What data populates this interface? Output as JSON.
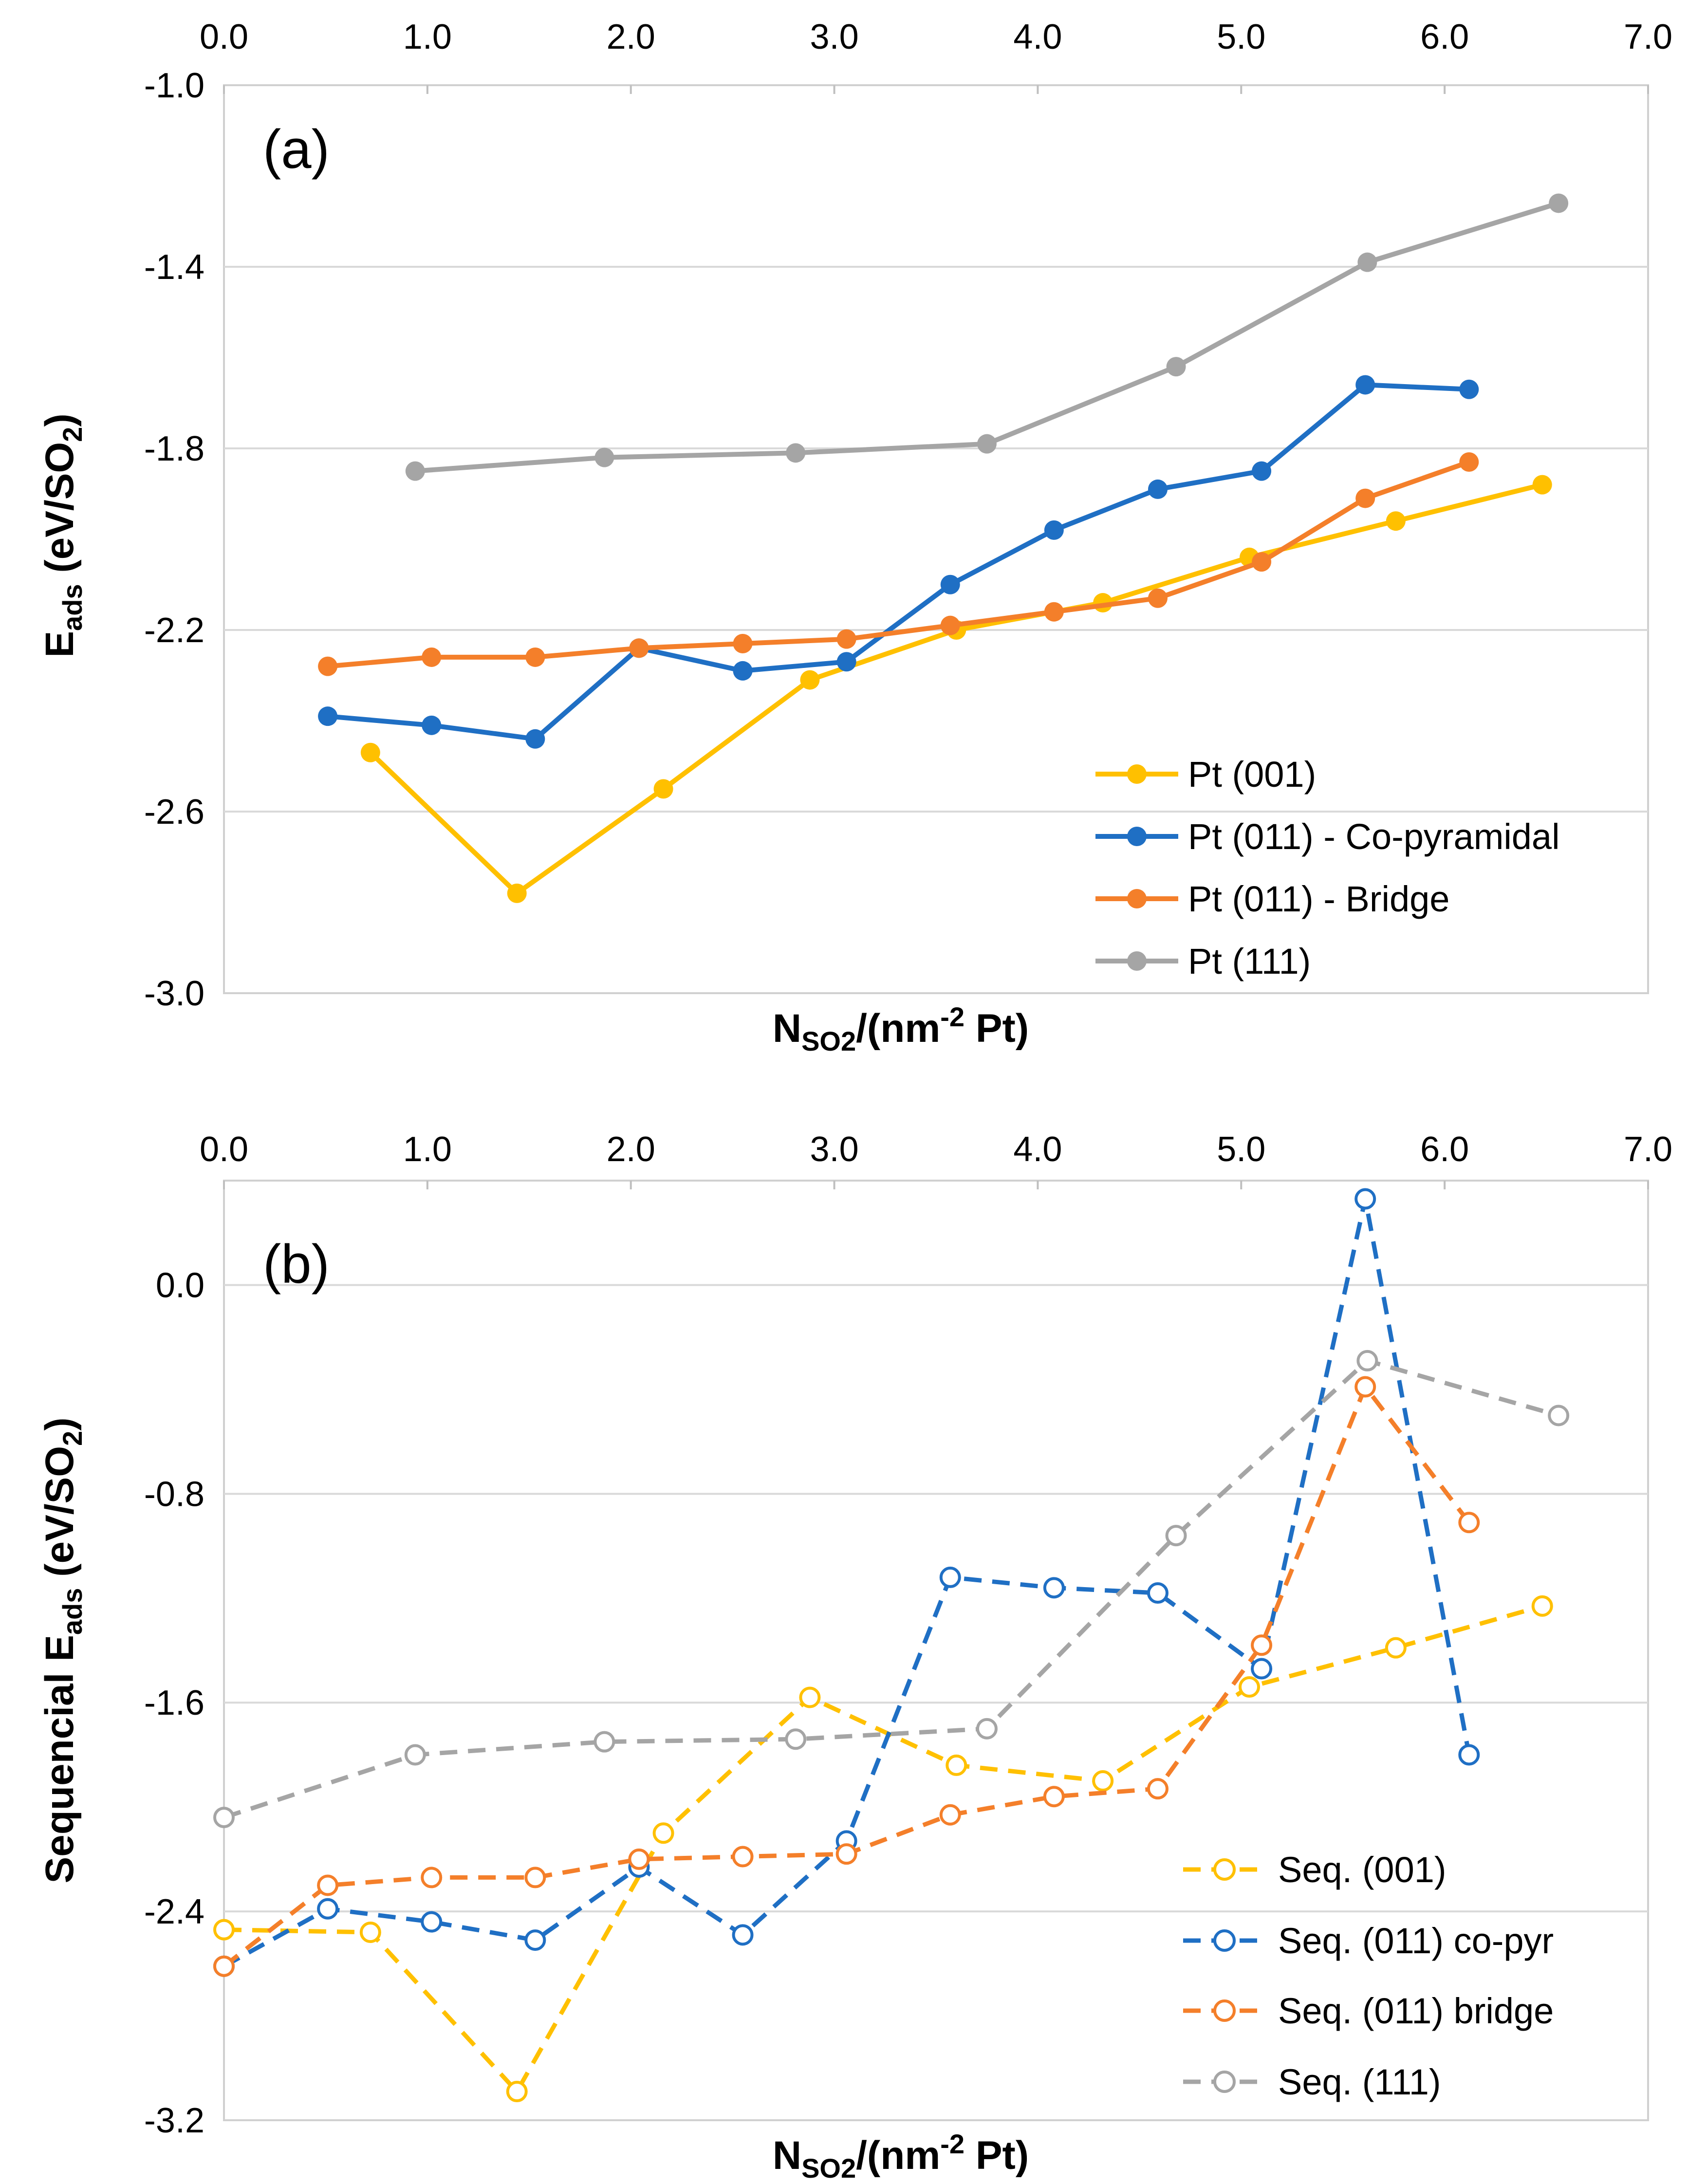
{
  "chart_data": [
    {
      "type": "line",
      "panel_label": "(a)",
      "title": "",
      "xlabel": {
        "base": "N",
        "sub": "SO2",
        "rest": "/(nm",
        "sup": "-2",
        "tail": " Pt)"
      },
      "ylabel": {
        "base": "E",
        "sub": "ads",
        "rest": " (eV/SO",
        "sub2": "2",
        "tail": ")"
      },
      "xlim": [
        0,
        7
      ],
      "ylim": [
        -3.0,
        -1.0
      ],
      "xticks": [
        "0.0",
        "1.0",
        "2.0",
        "3.0",
        "4.0",
        "5.0",
        "6.0",
        "7.0"
      ],
      "yticks": [
        "-1.0",
        "-1.4",
        "-1.8",
        "-2.2",
        "-2.6",
        "-3.0"
      ],
      "ytick_values": [
        -1.0,
        -1.4,
        -1.8,
        -2.2,
        -2.6,
        -3.0
      ],
      "grid": "horizontal",
      "legend_position": "bottom-right",
      "series": [
        {
          "name": "Pt (001)",
          "color": "#FFC000",
          "style": "solid",
          "marker": "filled",
          "x": [
            0.72,
            1.44,
            2.16,
            2.88,
            3.6,
            4.32,
            5.04,
            5.76,
            6.48
          ],
          "y": [
            -2.47,
            -2.78,
            -2.55,
            -2.31,
            -2.2,
            -2.14,
            -2.04,
            -1.96,
            -1.88
          ]
        },
        {
          "name": "Pt (011) - Co-pyramidal",
          "color": "#1F6FC4",
          "style": "solid",
          "marker": "filled",
          "x": [
            0.51,
            1.02,
            1.53,
            2.04,
            2.55,
            3.06,
            3.57,
            4.08,
            4.59,
            5.1,
            5.61,
            6.12
          ],
          "y": [
            -2.39,
            -2.41,
            -2.44,
            -2.24,
            -2.29,
            -2.27,
            -2.1,
            -1.98,
            -1.89,
            -1.85,
            -1.66,
            -1.67
          ]
        },
        {
          "name": "Pt (011) - Bridge",
          "color": "#F47F2A",
          "style": "solid",
          "marker": "filled",
          "x": [
            0.51,
            1.02,
            1.53,
            2.04,
            2.55,
            3.06,
            3.57,
            4.08,
            4.59,
            5.1,
            5.61,
            6.12
          ],
          "y": [
            -2.28,
            -2.26,
            -2.26,
            -2.24,
            -2.23,
            -2.22,
            -2.19,
            -2.16,
            -2.13,
            -2.05,
            -1.91,
            -1.83
          ]
        },
        {
          "name": "Pt (111)",
          "color": "#A5A5A5",
          "style": "solid",
          "marker": "filled",
          "x": [
            0.94,
            1.87,
            2.81,
            3.75,
            4.68,
            5.62,
            6.56
          ],
          "y": [
            -1.85,
            -1.82,
            -1.81,
            -1.79,
            -1.62,
            -1.39,
            -1.26
          ]
        }
      ]
    },
    {
      "type": "line",
      "panel_label": "(b)",
      "title": "",
      "xlabel": {
        "base": "N",
        "sub": "SO2",
        "rest": "/(nm",
        "sup": "-2",
        "tail": " Pt)"
      },
      "ylabel": {
        "base": "Sequencial E",
        "sub": "ads",
        "rest": " (eV/SO",
        "sub2": "2",
        "tail": ")"
      },
      "xlim": [
        0,
        7
      ],
      "ylim": [
        -3.2,
        0.4
      ],
      "xticks": [
        "0.0",
        "1.0",
        "2.0",
        "3.0",
        "4.0",
        "5.0",
        "6.0",
        "7.0"
      ],
      "yticks": [
        "0.0",
        "-0.8",
        "-1.6",
        "-2.4",
        "-3.2"
      ],
      "ytick_values": [
        0.0,
        -0.8,
        -1.6,
        -2.4,
        -3.2
      ],
      "grid": "horizontal",
      "legend_position": "bottom-right",
      "series": [
        {
          "name": "Seq. (001)",
          "color": "#FFC000",
          "style": "dashed",
          "marker": "open",
          "x": [
            0.0,
            0.72,
            1.44,
            2.16,
            2.88,
            3.6,
            4.32,
            5.04,
            5.76,
            6.48
          ],
          "y": [
            -2.47,
            -2.48,
            -3.09,
            -2.1,
            -1.58,
            -1.84,
            -1.9,
            -1.54,
            -1.39,
            -1.23
          ]
        },
        {
          "name": "Seq. (011) co-pyr",
          "color": "#1F6FC4",
          "style": "dashed",
          "marker": "open",
          "x": [
            0.0,
            0.51,
            1.02,
            1.53,
            2.04,
            2.55,
            3.06,
            3.57,
            4.08,
            4.59,
            5.1,
            5.61,
            6.12
          ],
          "y": [
            -2.61,
            -2.39,
            -2.44,
            -2.51,
            -2.23,
            -2.49,
            -2.13,
            -1.12,
            -1.16,
            -1.18,
            -1.47,
            0.33,
            -1.8
          ]
        },
        {
          "name": "Seq. (011) bridge",
          "color": "#F47F2A",
          "style": "dashed",
          "marker": "open",
          "x": [
            0.0,
            0.51,
            1.02,
            1.53,
            2.04,
            2.55,
            3.06,
            3.57,
            4.08,
            4.59,
            5.1,
            5.61,
            6.12
          ],
          "y": [
            -2.61,
            -2.3,
            -2.27,
            -2.27,
            -2.2,
            -2.19,
            -2.18,
            -2.03,
            -1.96,
            -1.93,
            -1.38,
            -0.39,
            -0.91
          ]
        },
        {
          "name": "Seq. (111)",
          "color": "#A5A5A5",
          "style": "dashed",
          "marker": "open",
          "x": [
            0.0,
            0.94,
            1.87,
            2.81,
            3.75,
            4.68,
            5.62,
            6.56
          ],
          "y": [
            -2.04,
            -1.8,
            -1.75,
            -1.74,
            -1.7,
            -0.96,
            -0.29,
            -0.5
          ]
        }
      ]
    }
  ]
}
